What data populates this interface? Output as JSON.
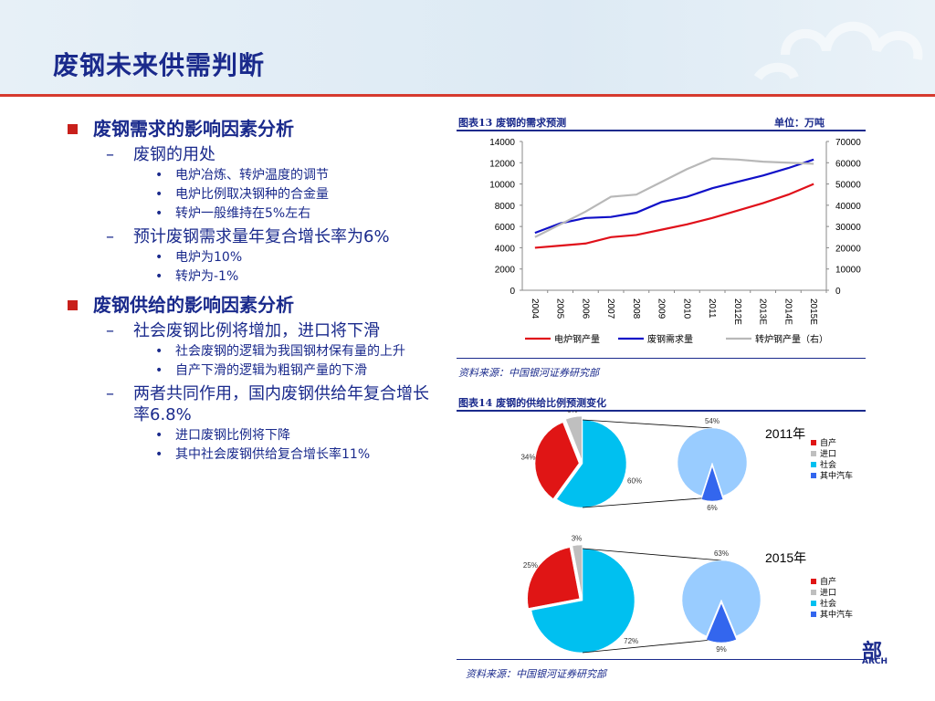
{
  "slide_title": "废钢未来供需判断",
  "bullets": {
    "s1": {
      "heading": "废钢需求的影响因素分析",
      "sub1": {
        "text": "废钢的用处",
        "items": [
          "电炉冶炼、转炉温度的调节",
          "电炉比例取决钢种的合金量",
          "转炉一般维持在5%左右"
        ]
      },
      "sub2": {
        "text": "预计废钢需求量年复合增长率为6%",
        "items": [
          "电炉为10%",
          "转炉为-1%"
        ]
      }
    },
    "s2": {
      "heading": "废钢供给的影响因素分析",
      "sub1": {
        "text": "社会废钢比例将增加，进口将下滑",
        "items": [
          "社会废钢的逻辑为我国钢材保有量的上升",
          "自产下滑的逻辑为粗钢产量的下滑"
        ]
      },
      "sub2": {
        "text": "两者共同作用，国内废钢供给年复合增长率6.8%",
        "items": [
          "进口废钢比例将下降",
          "其中社会废钢供给复合增长率11%"
        ]
      }
    }
  },
  "figure13": {
    "title": "图表13    废钢的需求预测",
    "unit": "单位：万吨",
    "source": "资料来源：中国银河证券研究部"
  },
  "figure14": {
    "title": "图表14    废钢的供给比例预测变化",
    "source": "资料来源：中国银河证券研究部"
  },
  "logo_text": "部",
  "logo_subtext": "ARCH",
  "chart_data": [
    {
      "type": "line",
      "categories": [
        "2004",
        "2005",
        "2006",
        "2007",
        "2008",
        "2009",
        "2010",
        "2011",
        "2012E",
        "2013E",
        "2014E",
        "2015E"
      ],
      "ylim": [
        0,
        14000
      ],
      "y_ticks": [
        "0",
        "2000",
        "4000",
        "6000",
        "8000",
        "10000",
        "12000",
        "14000"
      ],
      "y2lim": [
        0,
        70000
      ],
      "y2_ticks": [
        "0",
        "10000",
        "20000",
        "30000",
        "40000",
        "50000",
        "60000",
        "70000"
      ],
      "series": [
        {
          "name": "电炉钢产量",
          "color": "#e0101a",
          "axis": "right",
          "values": [
            20000,
            21000,
            22000,
            25000,
            26000,
            28500,
            31000,
            34000,
            37500,
            41000,
            45000,
            50000
          ]
        },
        {
          "name": "废钢需求量",
          "color": "#1010c8",
          "axis": "left",
          "values": [
            5400,
            6300,
            6800,
            6900,
            7300,
            8300,
            8800,
            9600,
            10200,
            10800,
            11500,
            12300
          ]
        },
        {
          "name": "转炉钢产量（右）",
          "color": "#b8b8b8",
          "axis": "right",
          "values": [
            25000,
            31000,
            37000,
            44000,
            45000,
            51000,
            57000,
            62000,
            61500,
            60500,
            60000,
            59500
          ]
        }
      ],
      "legend": "bottom"
    },
    {
      "type": "pie",
      "title": "2011年",
      "legend_entries": [
        "自产",
        "进口",
        "社会",
        "其中汽车"
      ],
      "colors": [
        "#e01515",
        "#bfbfbf",
        "#00c0f0",
        "#3366ee"
      ],
      "main_slices": [
        {
          "name": "自产",
          "value": 34,
          "label": "34%"
        },
        {
          "name": "进口",
          "value": 6,
          "label": "6%"
        },
        {
          "name": "社会",
          "value": 60,
          "label": "60%"
        }
      ],
      "breakout_slices": [
        {
          "name": "社会",
          "value": 54,
          "label": "54%"
        },
        {
          "name": "其中汽车",
          "value": 6,
          "label": "6%"
        }
      ]
    },
    {
      "type": "pie",
      "title": "2015年",
      "legend_entries": [
        "自产",
        "进口",
        "社会",
        "其中汽车"
      ],
      "colors": [
        "#e01515",
        "#bfbfbf",
        "#00c0f0",
        "#3366ee"
      ],
      "main_slices": [
        {
          "name": "自产",
          "value": 25,
          "label": "25%"
        },
        {
          "name": "进口",
          "value": 3,
          "label": "3%"
        },
        {
          "name": "社会",
          "value": 72,
          "label": "72%"
        }
      ],
      "breakout_slices": [
        {
          "name": "社会",
          "value": 63,
          "label": "63%"
        },
        {
          "name": "其中汽车",
          "value": 9,
          "label": "9%"
        }
      ]
    }
  ]
}
